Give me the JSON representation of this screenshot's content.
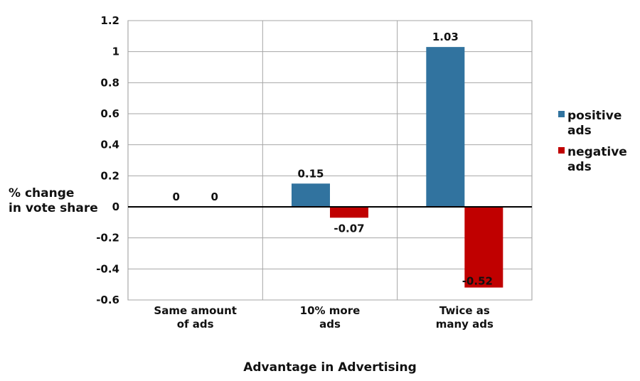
{
  "chart_data": {
    "type": "bar",
    "categories": [
      [
        "Same amount",
        "of ads"
      ],
      [
        "10% more",
        "ads"
      ],
      [
        "Twice as",
        "many ads"
      ]
    ],
    "series": [
      {
        "name": [
          "positive",
          "ads"
        ],
        "values": [
          0,
          0.15,
          1.03
        ],
        "color": "#31739f"
      },
      {
        "name": [
          "negative",
          "ads"
        ],
        "values": [
          0,
          -0.07,
          -0.52
        ],
        "color": "#c00000"
      }
    ],
    "data_labels": [
      [
        "0",
        "0.15",
        "1.03"
      ],
      [
        "0",
        "-0.07",
        "-0.52"
      ]
    ],
    "ylabel": [
      "% change",
      "in vote share"
    ],
    "xlabel": "Advantage in Advertising",
    "ylim": [
      -0.6,
      1.2
    ],
    "yticks": [
      -0.6,
      -0.4,
      -0.2,
      0,
      0.2,
      0.4,
      0.6,
      0.8,
      1,
      1.2
    ],
    "grid": true,
    "legend_position": "right"
  }
}
